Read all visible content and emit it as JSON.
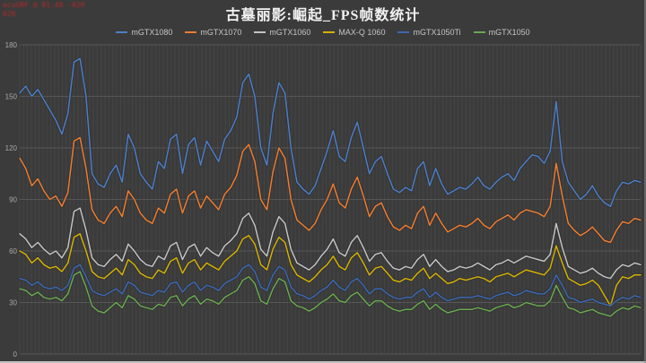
{
  "watermark": {
    "line1": "acuGBF @ 81.48 -020",
    "line2": "020"
  },
  "chart_data": {
    "type": "line",
    "title": "古墓丽影:崛起_FPS帧数统计",
    "xlabel": "",
    "ylabel": "",
    "ylim": [
      0,
      180
    ],
    "yticks": [
      0,
      30,
      60,
      90,
      120,
      150,
      180
    ],
    "x_count": 104,
    "grid": {
      "horizontal": true,
      "vertical_minor": true
    },
    "legend_position": "top",
    "background": "#3b3b3b",
    "series": [
      {
        "name": "mGTX1080",
        "color": "#4d7ec4",
        "values": [
          152,
          156,
          150,
          154,
          148,
          142,
          136,
          128,
          140,
          170,
          172,
          150,
          105,
          99,
          97,
          105,
          110,
          100,
          128,
          120,
          105,
          100,
          96,
          112,
          108,
          125,
          128,
          105,
          122,
          126,
          110,
          124,
          118,
          112,
          125,
          130,
          138,
          158,
          163,
          150,
          120,
          110,
          140,
          158,
          152,
          120,
          100,
          96,
          93,
          98,
          108,
          118,
          130,
          115,
          112,
          126,
          135,
          120,
          105,
          112,
          115,
          105,
          96,
          94,
          97,
          95,
          108,
          112,
          98,
          108,
          99,
          93,
          95,
          97,
          96,
          99,
          103,
          98,
          96,
          100,
          103,
          105,
          101,
          108,
          112,
          116,
          115,
          111,
          118,
          147,
          112,
          100,
          95,
          90,
          93,
          98,
          92,
          88,
          86,
          95,
          100,
          99,
          101,
          100
        ]
      },
      {
        "name": "mGTX1070",
        "color": "#ed7d31",
        "values": [
          114,
          108,
          98,
          102,
          95,
          90,
          92,
          86,
          94,
          124,
          126,
          108,
          84,
          78,
          76,
          82,
          86,
          80,
          95,
          90,
          82,
          78,
          76,
          85,
          82,
          93,
          96,
          82,
          92,
          95,
          85,
          92,
          88,
          84,
          93,
          97,
          104,
          118,
          122,
          112,
          90,
          84,
          106,
          120,
          114,
          90,
          78,
          75,
          72,
          76,
          84,
          90,
          99,
          88,
          85,
          96,
          103,
          92,
          80,
          86,
          88,
          80,
          74,
          72,
          75,
          73,
          82,
          86,
          75,
          82,
          76,
          71,
          73,
          75,
          74,
          76,
          79,
          75,
          73,
          77,
          79,
          81,
          78,
          82,
          84,
          83,
          82,
          80,
          86,
          111,
          92,
          76,
          72,
          69,
          71,
          74,
          70,
          66,
          65,
          72,
          77,
          76,
          79,
          78
        ]
      },
      {
        "name": "mGTX1060",
        "color": "#c3c3c3",
        "values": [
          70,
          67,
          62,
          65,
          61,
          58,
          60,
          56,
          62,
          83,
          85,
          72,
          56,
          52,
          51,
          55,
          58,
          54,
          64,
          60,
          55,
          52,
          51,
          57,
          55,
          63,
          65,
          55,
          62,
          64,
          57,
          62,
          59,
          57,
          63,
          66,
          70,
          79,
          82,
          75,
          61,
          57,
          71,
          80,
          76,
          61,
          53,
          51,
          49,
          52,
          57,
          61,
          67,
          59,
          57,
          65,
          69,
          62,
          54,
          58,
          59,
          54,
          50,
          49,
          51,
          50,
          55,
          58,
          51,
          55,
          51,
          48,
          49,
          51,
          50,
          51,
          53,
          51,
          49,
          52,
          53,
          55,
          53,
          55,
          57,
          56,
          55,
          54,
          58,
          76,
          62,
          51,
          49,
          47,
          48,
          50,
          47,
          45,
          44,
          49,
          52,
          51,
          53,
          52
        ]
      },
      {
        "name": "MAX-Q 1060",
        "color": "#d4b106",
        "values": [
          60,
          58,
          53,
          56,
          52,
          50,
          51,
          48,
          53,
          68,
          70,
          60,
          48,
          45,
          44,
          47,
          50,
          46,
          55,
          52,
          47,
          45,
          44,
          49,
          47,
          54,
          56,
          47,
          53,
          55,
          49,
          53,
          51,
          49,
          54,
          57,
          60,
          67,
          69,
          64,
          52,
          49,
          61,
          68,
          65,
          52,
          46,
          44,
          42,
          45,
          49,
          52,
          57,
          51,
          49,
          56,
          59,
          53,
          46,
          50,
          51,
          47,
          43,
          42,
          44,
          43,
          47,
          50,
          44,
          47,
          44,
          41,
          42,
          44,
          43,
          44,
          45,
          44,
          42,
          45,
          46,
          47,
          45,
          47,
          49,
          48,
          47,
          46,
          50,
          63,
          53,
          44,
          42,
          40,
          41,
          43,
          40,
          34,
          28,
          40,
          45,
          44,
          46,
          46
        ]
      },
      {
        "name": "mGTX1050Ti",
        "color": "#3c68b0",
        "values": [
          44,
          43,
          40,
          42,
          39,
          38,
          39,
          37,
          40,
          50,
          52,
          45,
          37,
          35,
          34,
          36,
          38,
          35,
          42,
          40,
          36,
          35,
          34,
          37,
          36,
          41,
          42,
          36,
          40,
          42,
          37,
          40,
          39,
          37,
          41,
          43,
          45,
          50,
          52,
          48,
          39,
          37,
          46,
          51,
          49,
          39,
          35,
          34,
          32,
          34,
          37,
          39,
          43,
          39,
          37,
          42,
          44,
          40,
          35,
          38,
          38,
          35,
          33,
          32,
          33,
          33,
          36,
          38,
          33,
          36,
          33,
          31,
          32,
          33,
          33,
          33,
          34,
          33,
          32,
          34,
          35,
          36,
          34,
          35,
          37,
          36,
          35,
          35,
          38,
          46,
          40,
          33,
          32,
          30,
          31,
          32,
          30,
          29,
          28,
          31,
          33,
          32,
          34,
          33
        ]
      },
      {
        "name": "mGTX1050",
        "color": "#6aa84f",
        "values": [
          38,
          37,
          34,
          36,
          33,
          32,
          33,
          31,
          35,
          46,
          48,
          39,
          28,
          25,
          24,
          27,
          30,
          27,
          34,
          32,
          28,
          27,
          26,
          29,
          28,
          33,
          34,
          28,
          32,
          34,
          29,
          32,
          31,
          29,
          33,
          35,
          37,
          43,
          45,
          41,
          31,
          29,
          38,
          44,
          42,
          31,
          28,
          27,
          25,
          27,
          30,
          32,
          35,
          31,
          30,
          34,
          36,
          32,
          28,
          31,
          31,
          28,
          26,
          25,
          26,
          26,
          29,
          31,
          26,
          29,
          26,
          24,
          25,
          26,
          26,
          26,
          27,
          26,
          25,
          27,
          28,
          29,
          27,
          28,
          30,
          29,
          28,
          28,
          31,
          40,
          33,
          27,
          26,
          24,
          25,
          26,
          24,
          23,
          22,
          25,
          27,
          26,
          28,
          27
        ]
      }
    ]
  }
}
